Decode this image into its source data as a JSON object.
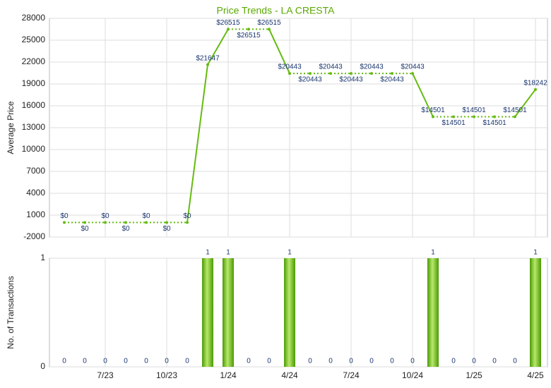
{
  "chart_data": [
    {
      "type": "line",
      "title": "Price Trends - LA CRESTA",
      "y_label": "Average Price",
      "color": "#66bb11",
      "values": [
        0,
        0,
        0,
        0,
        0,
        0,
        0,
        21647,
        26515,
        26515,
        26515,
        20443,
        20443,
        20443,
        20443,
        20443,
        20443,
        20443,
        14501,
        14501,
        14501,
        14501,
        14501,
        18242
      ],
      "value_labels": [
        "$0",
        "$0",
        "$0",
        "$0",
        "$0",
        "$0",
        "$0",
        "$21647",
        "$26515",
        "$26515",
        "$26515",
        "$20443",
        "$20443",
        "$20443",
        "$20443",
        "$20443",
        "$20443",
        "$20443",
        "$14501",
        "$14501",
        "$14501",
        "$14501",
        "$14501",
        "$18242"
      ],
      "ylim": [
        -2000,
        28000
      ],
      "yticks": [
        -2000,
        1000,
        4000,
        7000,
        10000,
        13000,
        16000,
        19000,
        22000,
        25000,
        28000
      ],
      "grid": true
    },
    {
      "type": "bar",
      "y_label": "No. of Transactions",
      "color": "#66bb11",
      "categories": [
        null,
        null,
        "7/23",
        null,
        null,
        "10/23",
        null,
        null,
        "1/24",
        null,
        null,
        "4/24",
        null,
        null,
        "7/24",
        null,
        null,
        "10/24",
        null,
        null,
        "1/25",
        null,
        null,
        "4/25"
      ],
      "values": [
        0,
        0,
        0,
        0,
        0,
        0,
        0,
        1,
        1,
        0,
        0,
        1,
        0,
        0,
        0,
        0,
        0,
        0,
        1,
        0,
        0,
        0,
        0,
        1
      ],
      "ylim": [
        0,
        1
      ],
      "yticks": [
        0,
        1
      ],
      "grid": true
    }
  ]
}
